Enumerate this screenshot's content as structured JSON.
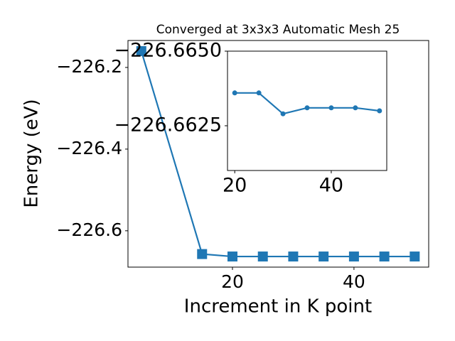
{
  "chart_data": [
    {
      "type": "line",
      "title": "Converged at 3x3x3 Automatic Mesh 25",
      "xlabel": "Increment in K point",
      "ylabel": "Energy (eV)",
      "x": [
        5,
        15,
        20,
        25,
        30,
        35,
        40,
        45,
        50
      ],
      "series": [
        {
          "color": "#1f77b4",
          "marker": "square",
          "values": [
            -226.16,
            -226.657,
            -226.663,
            -226.663,
            -226.663,
            -226.663,
            -226.663,
            -226.663,
            -226.663
          ]
        }
      ],
      "xlim": [
        2.8,
        52.3
      ],
      "ylim": [
        -226.689,
        -226.134
      ],
      "xticks": [
        20,
        40
      ],
      "yticks": [
        {
          "value": -226.6,
          "label": "−226.6"
        },
        {
          "value": -226.4,
          "label": "−226.4"
        },
        {
          "value": -226.2,
          "label": "−226.2"
        }
      ]
    },
    {
      "type": "line",
      "x": [
        20,
        25,
        30,
        35,
        40,
        45,
        50
      ],
      "series": [
        {
          "color": "#1f77b4",
          "marker": "circle",
          "values": [
            -226.6636,
            -226.6636,
            -226.6629,
            -226.6631,
            -226.6631,
            -226.6631,
            -226.663
          ]
        }
      ],
      "xlim": [
        18.5,
        51.5
      ],
      "ylim": [
        -226.661,
        -226.665
      ],
      "xticks": [
        20,
        40
      ],
      "yticks": [
        {
          "value": -226.665,
          "label": "−226.6650"
        },
        {
          "value": -226.6625,
          "label": "−226.6625"
        }
      ]
    }
  ]
}
